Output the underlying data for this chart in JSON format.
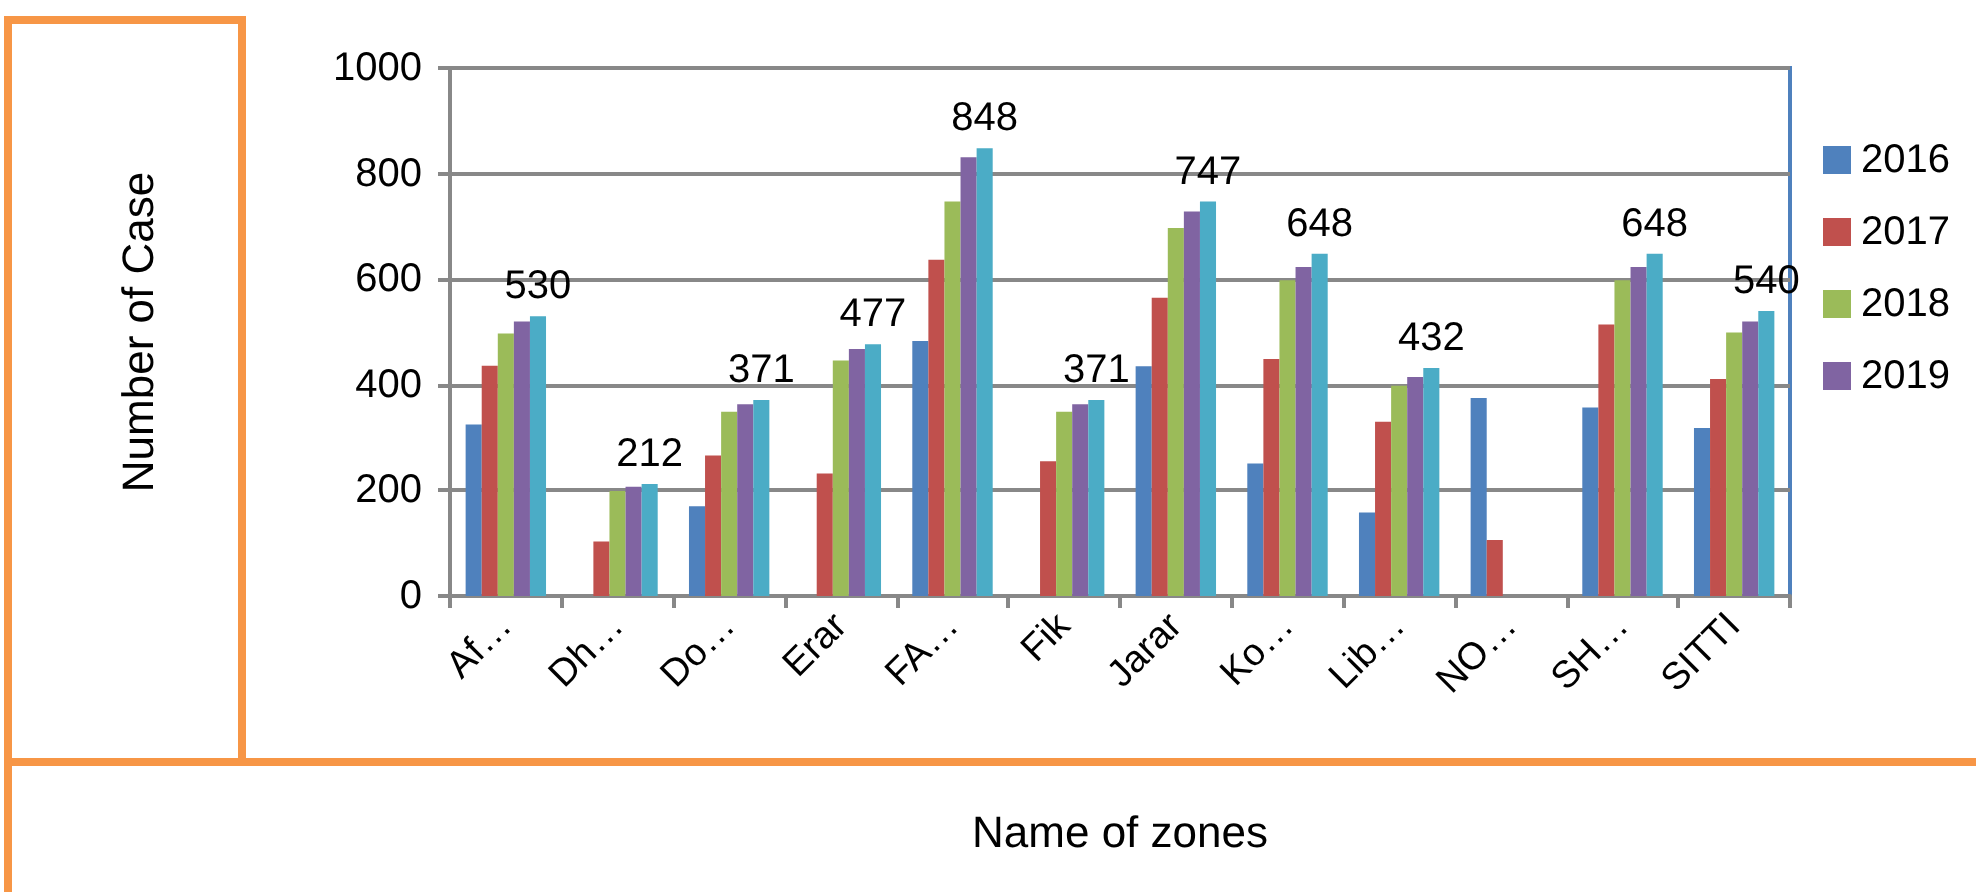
{
  "chart_data": {
    "type": "bar",
    "xlabel": "Name of zones",
    "ylabel": "Number of Case",
    "categories": [
      "Af…",
      "Dh…",
      "Do…",
      "Erar",
      "FA…",
      "Fik",
      "Jarar",
      "Ko…",
      "Lib…",
      "NO…",
      "SH…",
      "SITTI"
    ],
    "series": [
      {
        "name": "2016",
        "color": "#4f81bd",
        "values": [
          325,
          null,
          170,
          null,
          483,
          null,
          435,
          251,
          158,
          375,
          357,
          318
        ]
      },
      {
        "name": "2017",
        "color": "#c0504d",
        "values": [
          436,
          103,
          266,
          232,
          637,
          255,
          565,
          449,
          330,
          106,
          514,
          411
        ]
      },
      {
        "name": "2018",
        "color": "#9bbb59",
        "values": [
          497,
          199,
          349,
          446,
          747,
          349,
          697,
          598,
          398,
          null,
          598,
          499
        ]
      },
      {
        "name": "2019",
        "color": "#8064a2",
        "values": [
          520,
          207,
          363,
          468,
          831,
          363,
          728,
          623,
          415,
          null,
          623,
          520
        ]
      },
      {
        "color": "#4bacc6",
        "values": [
          530,
          212,
          371,
          477,
          848,
          371,
          747,
          648,
          432,
          null,
          648,
          540
        ],
        "value_labels": [
          "530",
          "212",
          "371",
          "477",
          "848",
          "371",
          "747",
          "648",
          "432",
          null,
          "648",
          "540"
        ]
      }
    ],
    "ylim": [
      0,
      1000
    ],
    "yticks": [
      0,
      200,
      400,
      600,
      800,
      1000
    ],
    "grid": "y",
    "legend": "right"
  }
}
